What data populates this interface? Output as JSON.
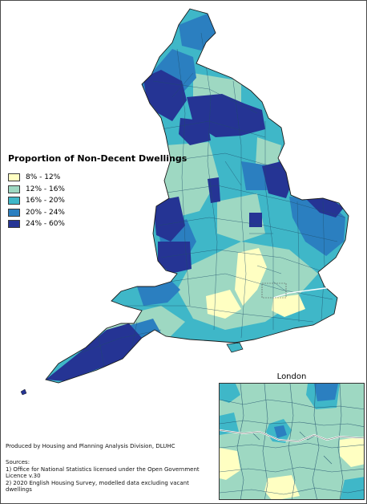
{
  "legend": {
    "title": "Proportion of Non-Decent Dwellings",
    "items": [
      {
        "label": "8% - 12%",
        "color": "#ffffc2"
      },
      {
        "label": "12% - 16%",
        "color": "#9ed8c2"
      },
      {
        "label": "16% - 20%",
        "color": "#3fb7c8"
      },
      {
        "label": "20% - 24%",
        "color": "#2b7fc0"
      },
      {
        "label": "24% - 60%",
        "color": "#253494"
      }
    ]
  },
  "inset": {
    "title": "London"
  },
  "credit": "Produced by Housing and Planning Analysis Division, DLUHC",
  "sources": {
    "heading": "Sources:",
    "line1": "1) Office for National Statistics licensed under the Open Government Licence v.30",
    "line2": "2) 2020 English Housing Survey, modelled data excluding vacant dwellings"
  }
}
